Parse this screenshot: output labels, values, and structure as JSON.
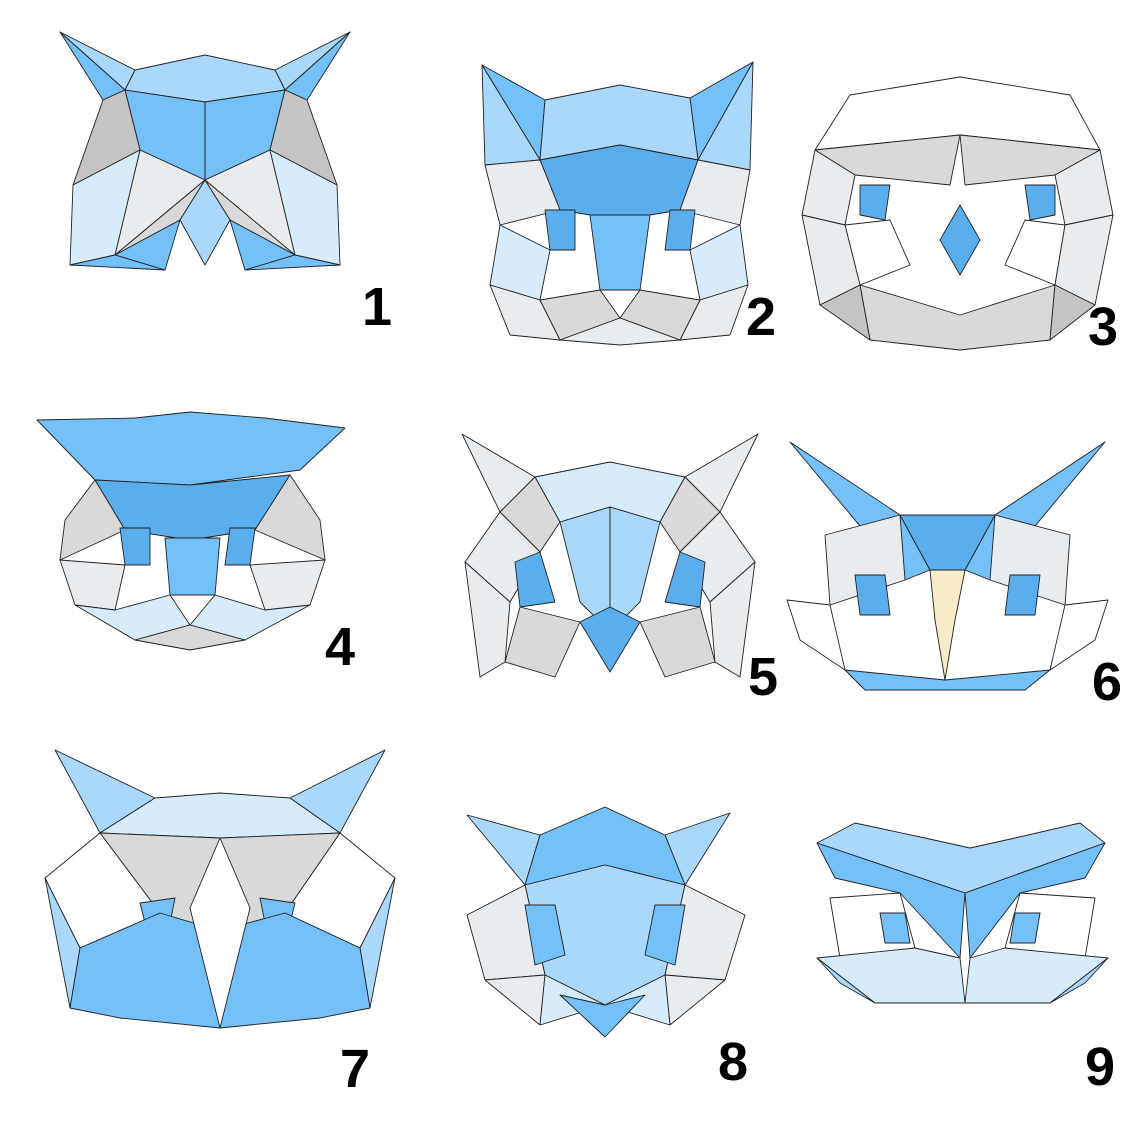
{
  "colors": {
    "blue_dark": "#5aaeee",
    "blue_mid": "#74c0f8",
    "blue_light": "#a9d8fb",
    "blue_pale": "#d6ecfb",
    "gray_dark": "#c4c4c4",
    "gray_mid": "#d9d9d9",
    "gray_light": "#e9ecef",
    "white": "#ffffff",
    "beak_cream": "#f7ebc8"
  },
  "masks": [
    {
      "label": "1",
      "icon": "owl-mask-1-icon"
    },
    {
      "label": "2",
      "icon": "owl-mask-2-icon"
    },
    {
      "label": "3",
      "icon": "owl-mask-3-icon"
    },
    {
      "label": "4",
      "icon": "owl-mask-4-icon"
    },
    {
      "label": "5",
      "icon": "owl-mask-5-icon"
    },
    {
      "label": "6",
      "icon": "owl-mask-6-icon"
    },
    {
      "label": "7",
      "icon": "owl-mask-7-icon"
    },
    {
      "label": "8",
      "icon": "owl-mask-8-icon"
    },
    {
      "label": "9",
      "icon": "owl-mask-9-icon"
    }
  ]
}
